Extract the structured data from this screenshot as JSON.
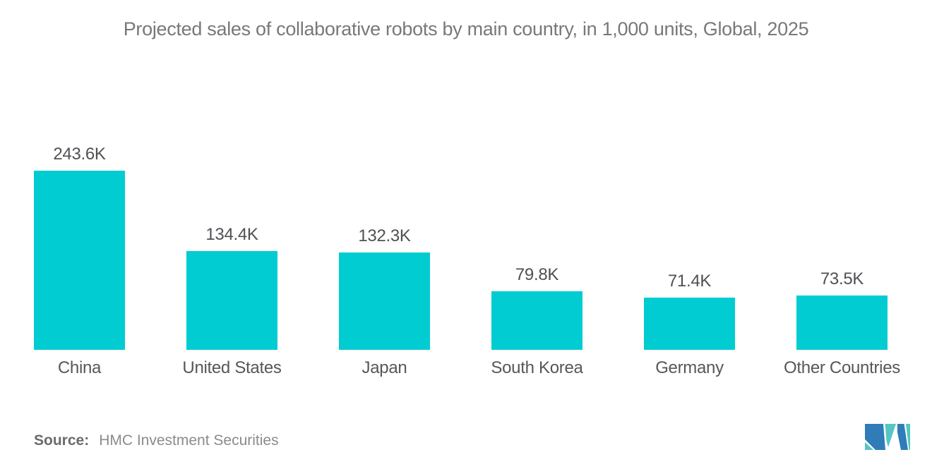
{
  "chart_data": {
    "type": "bar",
    "title": "Projected sales of collaborative robots by main country, in 1,000 units, Global, 2025",
    "categories": [
      "China",
      "United States",
      "Japan",
      "South Korea",
      "Germany",
      "Other Countries"
    ],
    "values": [
      243.6,
      134.4,
      132.3,
      79.8,
      71.4,
      73.5
    ],
    "value_labels": [
      "243.6K",
      "134.4K",
      "132.3K",
      "79.8K",
      "71.4K",
      "73.5K"
    ],
    "unit": "1,000 units",
    "xlabel": "",
    "ylabel": "",
    "ylim": [
      0,
      260
    ],
    "grid": false,
    "legend": "none",
    "bar_color": "#00ccd2"
  },
  "source": {
    "label": "Source:",
    "value": "HMC Investment Securities"
  },
  "logo": {
    "name": "mordor-intelligence-logo",
    "blue": "#2f7cb8",
    "teal": "#55c6c1"
  },
  "colors": {
    "title_text": "#77787b",
    "value_text": "#4f5054",
    "category_text": "#56575b",
    "background": "#ffffff"
  }
}
